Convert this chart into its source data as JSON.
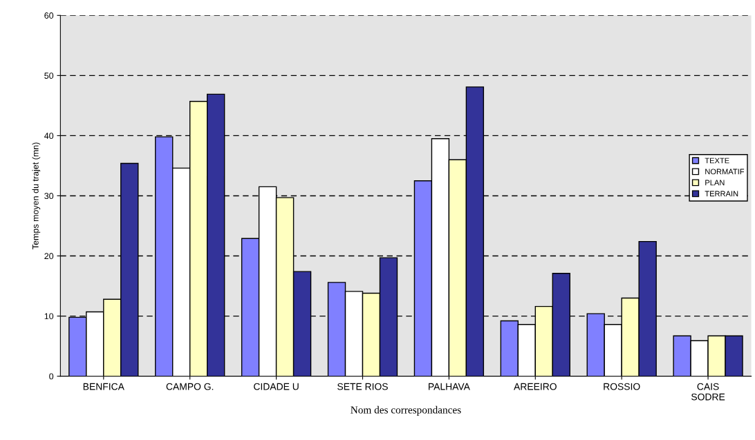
{
  "chart_data": {
    "type": "bar",
    "xlabel": "Nom des correspondances",
    "ylabel": "Temps moyen du trajet (mn)",
    "categories": [
      "BENFICA",
      "CAMPO G.",
      "CIDADE U",
      "SETE RIOS",
      "PALHAVA",
      "AREEIRO",
      "ROSSIO",
      "CAIS\nSODRE"
    ],
    "series": [
      {
        "name": "TEXTE",
        "color": "#8080ff",
        "values": [
          9.8,
          39.8,
          22.9,
          15.6,
          32.5,
          9.2,
          10.4,
          6.7
        ]
      },
      {
        "name": "NORMATIF",
        "color": "#ffffff",
        "values": [
          10.7,
          34.6,
          31.5,
          14.1,
          39.5,
          8.6,
          8.6,
          5.9
        ]
      },
      {
        "name": "PLAN",
        "color": "#ffffc0",
        "values": [
          12.8,
          45.7,
          29.7,
          13.8,
          36.0,
          11.6,
          13.0,
          6.7
        ]
      },
      {
        "name": "TERRAIN",
        "color": "#333399",
        "values": [
          35.4,
          46.9,
          17.4,
          19.7,
          48.1,
          17.1,
          22.4,
          6.7
        ]
      }
    ],
    "ylim": [
      0,
      60
    ],
    "yticks": [
      0,
      10,
      20,
      30,
      40,
      50,
      60
    ],
    "grid": "y",
    "legend": "right"
  }
}
